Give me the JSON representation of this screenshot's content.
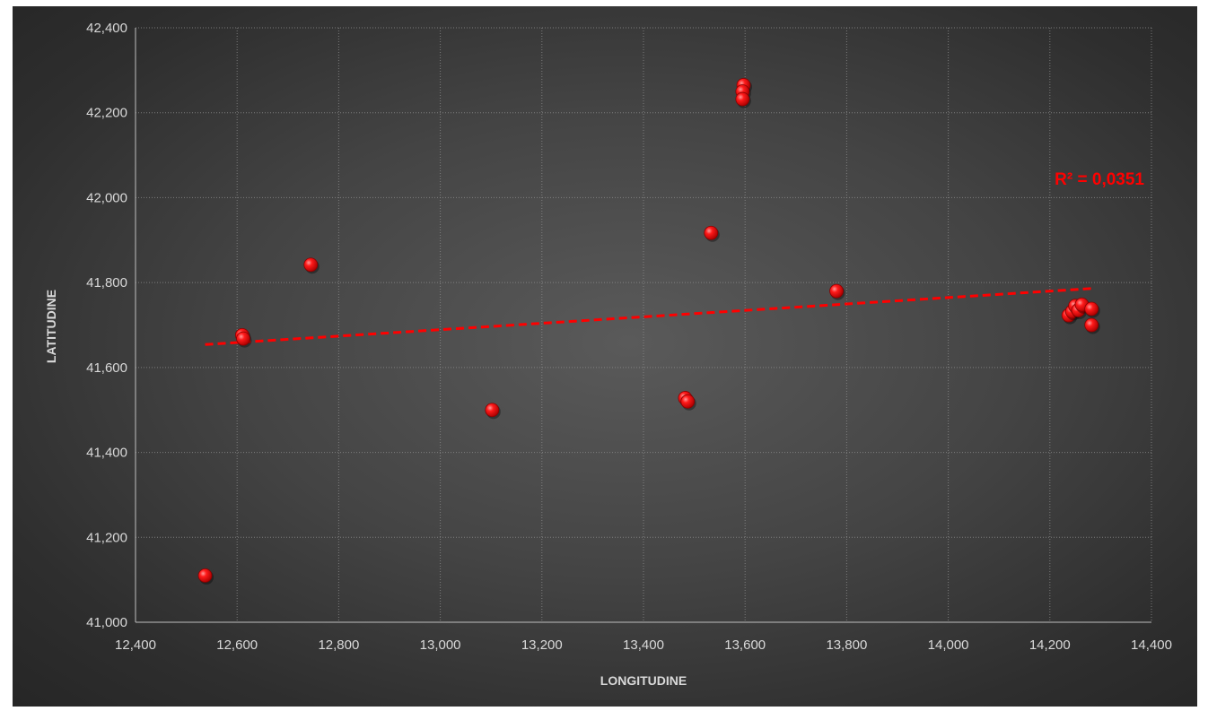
{
  "chart_data": {
    "type": "scatter",
    "title": "",
    "xlabel": "LONGITUDINE",
    "ylabel": "LATITUDINE",
    "xlim": [
      12.4,
      14.4
    ],
    "ylim": [
      41.0,
      42.4
    ],
    "x_ticks": [
      "12,400",
      "12,600",
      "12,800",
      "13,000",
      "13,200",
      "13,400",
      "13,600",
      "13,800",
      "14,000",
      "14,200",
      "14,400"
    ],
    "y_ticks": [
      "41,000",
      "41,200",
      "41,400",
      "41,600",
      "41,800",
      "42,000",
      "42,200",
      "42,400"
    ],
    "grid": true,
    "legend": "none",
    "series": [
      {
        "color": "#ff0000",
        "points": [
          {
            "x": 12.537,
            "y": 41.11
          },
          {
            "x": 12.61,
            "y": 41.676
          },
          {
            "x": 12.612,
            "y": 41.668
          },
          {
            "x": 12.745,
            "y": 41.842
          },
          {
            "x": 13.102,
            "y": 41.5
          },
          {
            "x": 13.482,
            "y": 41.528
          },
          {
            "x": 13.487,
            "y": 41.52
          },
          {
            "x": 13.533,
            "y": 41.917
          },
          {
            "x": 13.597,
            "y": 42.265
          },
          {
            "x": 13.595,
            "y": 42.25
          },
          {
            "x": 13.595,
            "y": 42.232
          },
          {
            "x": 13.78,
            "y": 41.78
          },
          {
            "x": 14.237,
            "y": 41.723
          },
          {
            "x": 14.244,
            "y": 41.732
          },
          {
            "x": 14.25,
            "y": 41.745
          },
          {
            "x": 14.256,
            "y": 41.735
          },
          {
            "x": 14.263,
            "y": 41.748
          },
          {
            "x": 14.282,
            "y": 41.738
          },
          {
            "x": 14.282,
            "y": 41.7
          }
        ]
      }
    ],
    "trendline": {
      "type": "linear",
      "color": "#ff0000",
      "x": [
        12.537,
        14.282
      ],
      "y": [
        41.654,
        41.786
      ],
      "label": "R² = 0,0351"
    }
  }
}
